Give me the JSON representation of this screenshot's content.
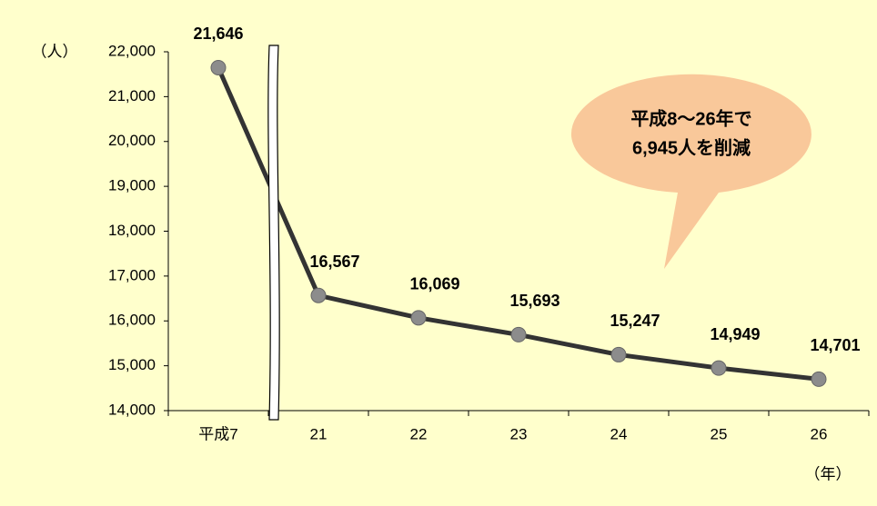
{
  "chart_data": {
    "type": "line",
    "y_unit": "（人）",
    "x_unit": "（年）",
    "categories": [
      "平成7",
      "21",
      "22",
      "23",
      "24",
      "25",
      "26"
    ],
    "values": [
      21646,
      16567,
      16069,
      15693,
      15247,
      14949,
      14701
    ],
    "value_labels": [
      "21,646",
      "16,567",
      "16,069",
      "15,693",
      "15,247",
      "14,949",
      "14,701"
    ],
    "color": "#333333",
    "marker_color": "#8c8c8c",
    "ylim": [
      14000,
      22000
    ],
    "yticks": [
      {
        "value": 14000,
        "label": "14,000"
      },
      {
        "value": 15000,
        "label": "15,000"
      },
      {
        "value": 16000,
        "label": "16,000"
      },
      {
        "value": 17000,
        "label": "17,000"
      },
      {
        "value": 18000,
        "label": "18,000"
      },
      {
        "value": 19000,
        "label": "19,000"
      },
      {
        "value": 20000,
        "label": "20,000"
      },
      {
        "value": 21000,
        "label": "21,000"
      },
      {
        "value": 22000,
        "label": "22,000"
      }
    ],
    "annotation": [
      "平成8～26年で",
      "6,945人を削減"
    ],
    "grid": false
  }
}
